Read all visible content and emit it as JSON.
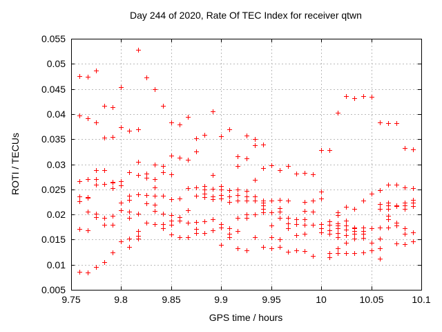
{
  "chart_data": {
    "type": "scatter",
    "title": "Day 244 of 2020, Rate Of TEC Index for receiver qtwn",
    "xlabel": "GPS time / hours",
    "ylabel": "ROTI / TECUs",
    "xlim": [
      9.75,
      10.1
    ],
    "ylim": [
      0.005,
      0.055
    ],
    "xtick_values": [
      9.75,
      9.8,
      9.85,
      9.9,
      9.95,
      10,
      10.05,
      10.1
    ],
    "xtick_labels": [
      "9.75",
      "9.8",
      "9.85",
      "9.9",
      "9.95",
      "10",
      "10.05",
      "10.1"
    ],
    "ytick_values": [
      0.005,
      0.01,
      0.015,
      0.02,
      0.025,
      0.03,
      0.035,
      0.04,
      0.045,
      0.05,
      0.055
    ],
    "ytick_labels": [
      "0.005",
      "0.01",
      "0.015",
      "0.02",
      "0.025",
      "0.03",
      "0.035",
      "0.04",
      "0.045",
      "0.05",
      "0.055"
    ],
    "grid": "dashed",
    "legend": "none",
    "marker": "plus",
    "marker_color": "#ff0000",
    "grid_color": "#b9b9b9",
    "axis_color": "#000000",
    "background_color": "#ffffff",
    "series": [
      {
        "name": "ROTI",
        "columns": [
          {
            "x": 9.7583,
            "y": [
              0.0475,
              0.0397,
              0.0266,
              0.0236,
              0.0226,
              0.0171,
              0.0086
            ]
          },
          {
            "x": 9.7667,
            "y": [
              0.0474,
              0.0392,
              0.0271,
              0.0235,
              0.0233,
              0.0205,
              0.0169,
              0.0084
            ]
          },
          {
            "x": 9.775,
            "y": [
              0.0486,
              0.0384,
              0.0288,
              0.0271,
              0.0259,
              0.0202,
              0.0194,
              0.0095
            ]
          },
          {
            "x": 9.7833,
            "y": [
              0.0417,
              0.0353,
              0.0288,
              0.0261,
              0.0193,
              0.018,
              0.0105
            ]
          },
          {
            "x": 9.7917,
            "y": [
              0.0414,
              0.0355,
              0.0265,
              0.0263,
              0.0253,
              0.0198,
              0.018,
              0.0124
            ]
          },
          {
            "x": 9.8,
            "y": [
              0.0453,
              0.0374,
              0.0266,
              0.0258,
              0.0224,
              0.0209,
              0.0146
            ]
          },
          {
            "x": 9.8083,
            "y": [
              0.0367,
              0.0284,
              0.0238,
              0.0229,
              0.0205,
              0.0193,
              0.0152,
              0.0135
            ]
          },
          {
            "x": 9.8167,
            "y": [
              0.0528,
              0.0369,
              0.0305,
              0.0279,
              0.024,
              0.0201,
              0.0167,
              0.0158,
              0.0152
            ]
          },
          {
            "x": 9.825,
            "y": [
              0.0473,
              0.0281,
              0.0273,
              0.0239,
              0.0222,
              0.0183
            ]
          },
          {
            "x": 9.8333,
            "y": [
              0.045,
              0.03,
              0.027,
              0.0254,
              0.0238,
              0.0219,
              0.0207,
              0.0181
            ]
          },
          {
            "x": 9.8417,
            "y": [
              0.0417,
              0.0296,
              0.0284,
              0.0237,
              0.0201,
              0.0181,
              0.0173
            ]
          },
          {
            "x": 9.85,
            "y": [
              0.0383,
              0.0317,
              0.028,
              0.023,
              0.0199,
              0.0188,
              0.018,
              0.016
            ]
          },
          {
            "x": 9.8583,
            "y": [
              0.0379,
              0.0313,
              0.0232,
              0.0194,
              0.0188,
              0.0154
            ]
          },
          {
            "x": 9.8667,
            "y": [
              0.0394,
              0.0309,
              0.0252,
              0.0209,
              0.0183,
              0.0155
            ]
          },
          {
            "x": 9.875,
            "y": [
              0.0352,
              0.0325,
              0.0254,
              0.0237,
              0.0185,
              0.0171,
              0.0163
            ]
          },
          {
            "x": 9.8833,
            "y": [
              0.0359,
              0.0257,
              0.025,
              0.0242,
              0.0234,
              0.0187,
              0.0163
            ]
          },
          {
            "x": 9.8917,
            "y": [
              0.0406,
              0.0279,
              0.0251,
              0.0236,
              0.023,
              0.019,
              0.0168
            ]
          },
          {
            "x": 9.9,
            "y": [
              0.0356,
              0.0256,
              0.025,
              0.0239,
              0.0232,
              0.0181,
              0.0174,
              0.014
            ]
          },
          {
            "x": 9.9083,
            "y": [
              0.037,
              0.0248,
              0.0236,
              0.0225,
              0.0173,
              0.0161,
              0.0154
            ]
          },
          {
            "x": 9.9167,
            "y": [
              0.0316,
              0.0296,
              0.025,
              0.0239,
              0.0228,
              0.0193,
              0.0167,
              0.0133
            ]
          },
          {
            "x": 9.925,
            "y": [
              0.0357,
              0.0312,
              0.0247,
              0.0236,
              0.0228,
              0.02,
              0.0193,
              0.0129
            ]
          },
          {
            "x": 9.9333,
            "y": [
              0.035,
              0.0338,
              0.0269,
              0.0236,
              0.0228,
              0.02,
              0.0154
            ]
          },
          {
            "x": 9.9417,
            "y": [
              0.0339,
              0.0293,
              0.0228,
              0.0224,
              0.0218,
              0.0211,
              0.0204,
              0.0135
            ]
          },
          {
            "x": 9.95,
            "y": [
              0.0298,
              0.0228,
              0.0204,
              0.0178,
              0.0154,
              0.0133
            ]
          },
          {
            "x": 9.9583,
            "y": [
              0.0288,
              0.0229,
              0.0212,
              0.0205,
              0.0193,
              0.015,
              0.0135
            ]
          },
          {
            "x": 9.9667,
            "y": [
              0.0296,
              0.0228,
              0.0193,
              0.0182,
              0.0173,
              0.0126
            ]
          },
          {
            "x": 9.975,
            "y": [
              0.0281,
              0.019,
              0.0181,
              0.0159,
              0.0129
            ]
          },
          {
            "x": 9.9833,
            "y": [
              0.0283,
              0.0225,
              0.0207,
              0.019,
              0.018,
              0.0161,
              0.0127
            ]
          },
          {
            "x": 9.9917,
            "y": [
              0.028,
              0.0227,
              0.0205,
              0.0179,
              0.0118
            ]
          },
          {
            "x": 10.0,
            "y": [
              0.0328,
              0.0245,
              0.0232,
              0.0181,
              0.0173,
              0.0165
            ]
          },
          {
            "x": 10.0083,
            "y": [
              0.0328,
              0.0187,
              0.0179,
              0.0168,
              0.0161,
              0.0123,
              0.0115
            ]
          },
          {
            "x": 10.0167,
            "y": [
              0.0402,
              0.0204,
              0.0199,
              0.0182,
              0.0178,
              0.0172,
              0.0163,
              0.0154,
              0.0132,
              0.0123
            ]
          },
          {
            "x": 10.025,
            "y": [
              0.0436,
              0.0215,
              0.0188,
              0.0178,
              0.017,
              0.0159,
              0.0144,
              0.0123
            ]
          },
          {
            "x": 10.0333,
            "y": [
              0.0431,
              0.0211,
              0.0174,
              0.0172,
              0.0167,
              0.0161,
              0.0152,
              0.0123
            ]
          },
          {
            "x": 10.0417,
            "y": [
              0.0435,
              0.0227,
              0.0174,
              0.0167,
              0.0161,
              0.0153,
              0.0124
            ]
          },
          {
            "x": 10.05,
            "y": [
              0.0434,
              0.0241,
              0.0173,
              0.0144,
              0.0128
            ]
          },
          {
            "x": 10.0583,
            "y": [
              0.0383,
              0.0249,
              0.0221,
              0.0211,
              0.0174,
              0.0152,
              0.0133,
              0.0112
            ]
          },
          {
            "x": 10.0667,
            "y": [
              0.0382,
              0.0259,
              0.0224,
              0.0218,
              0.0211,
              0.0198,
              0.0191,
              0.0174
            ]
          },
          {
            "x": 10.075,
            "y": [
              0.0382,
              0.0259,
              0.0218,
              0.0216,
              0.0184,
              0.0178,
              0.0142
            ]
          },
          {
            "x": 10.0833,
            "y": [
              0.0332,
              0.0254,
              0.0224,
              0.0218,
              0.0211,
              0.0172,
              0.0161,
              0.0141
            ]
          },
          {
            "x": 10.0917,
            "y": [
              0.033,
              0.0252,
              0.0229,
              0.0224,
              0.0217,
              0.0164,
              0.0147
            ]
          }
        ]
      }
    ]
  }
}
